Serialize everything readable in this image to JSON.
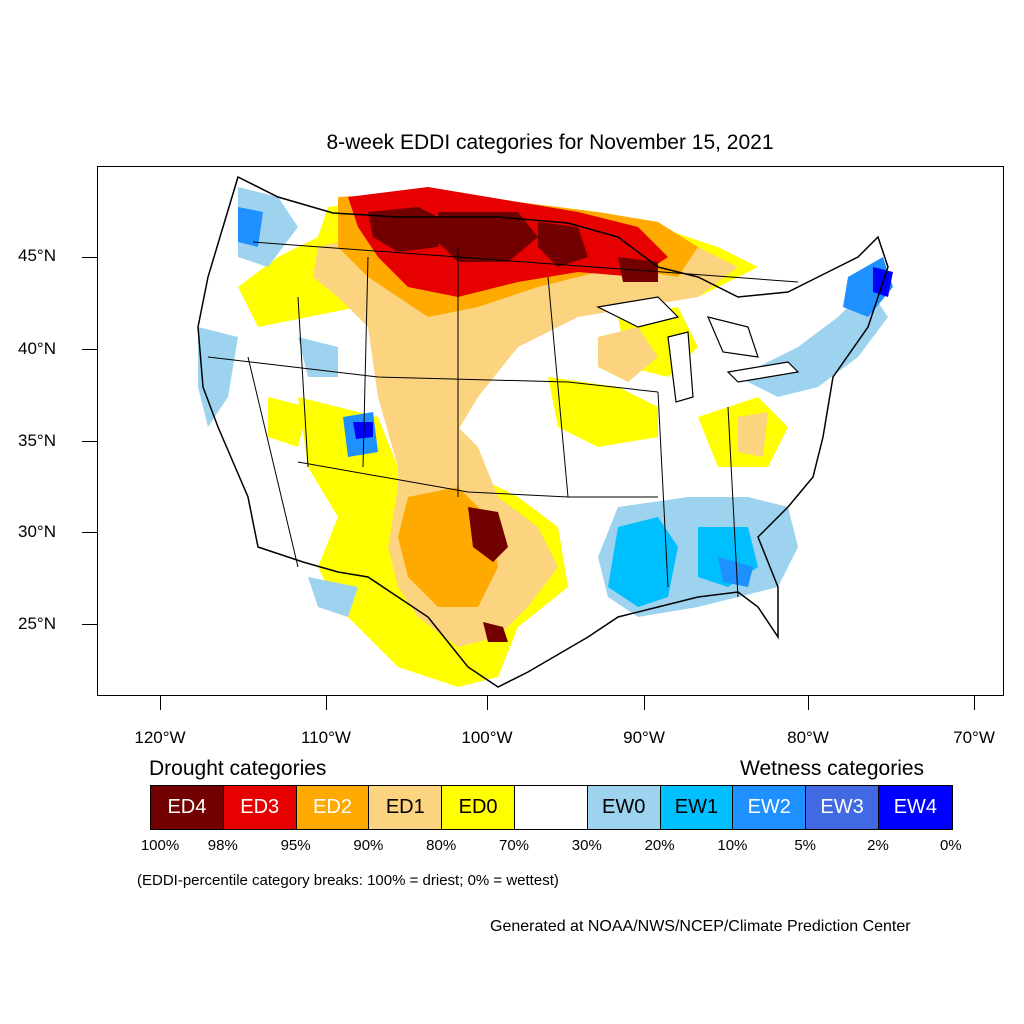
{
  "title": "8-week EDDI categories for November 15, 2021",
  "lat_labels": [
    "45°N",
    "40°N",
    "35°N",
    "30°N",
    "25°N"
  ],
  "lon_labels": [
    "120°W",
    "110°W",
    "100°W",
    "90°W",
    "80°W",
    "70°W"
  ],
  "legend": {
    "drought_heading": "Drought categories",
    "wetness_heading": "Wetness categories",
    "categories": [
      {
        "label": "ED4",
        "color": "#730000",
        "text_color": "#ffffff"
      },
      {
        "label": "ED3",
        "color": "#e60000",
        "text_color": "#ffffff"
      },
      {
        "label": "ED2",
        "color": "#ffaa00",
        "text_color": "#ffffff"
      },
      {
        "label": "ED1",
        "color": "#fcd37f",
        "text_color": "#000000"
      },
      {
        "label": "ED0",
        "color": "#ffff00",
        "text_color": "#000000"
      },
      {
        "label": "",
        "color": "#ffffff",
        "text_color": "#000000"
      },
      {
        "label": "EW0",
        "color": "#9dd3ee",
        "text_color": "#000000"
      },
      {
        "label": "EW1",
        "color": "#00bfff",
        "text_color": "#000000"
      },
      {
        "label": "EW2",
        "color": "#1e90ff",
        "text_color": "#ffffff"
      },
      {
        "label": "EW3",
        "color": "#4169e1",
        "text_color": "#ffffff"
      },
      {
        "label": "EW4",
        "color": "#0000ff",
        "text_color": "#ffffff"
      }
    ],
    "percentiles": [
      "100%",
      "98%",
      "95%",
      "90%",
      "80%",
      "70%",
      "30%",
      "20%",
      "10%",
      "5%",
      "2%",
      "0%"
    ]
  },
  "note": "(EDDI-percentile category breaks: 100% = driest; 0% = wettest)",
  "credit": "Generated at NOAA/NWS/NCEP/Climate Prediction Center"
}
